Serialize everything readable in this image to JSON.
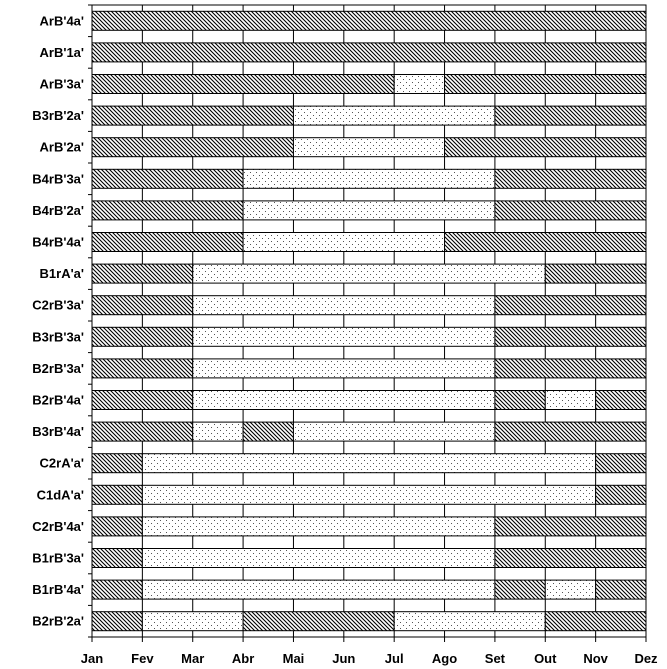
{
  "chart_data": {
    "type": "bar",
    "subtype": "gantt-timeline",
    "title": "",
    "xlabel": "",
    "ylabel": "",
    "months": [
      "Jan",
      "Fev",
      "Mar",
      "Abr",
      "Mai",
      "Jun",
      "Jul",
      "Ago",
      "Set",
      "Out",
      "Nov",
      "Dez"
    ],
    "xlim": [
      0,
      11
    ],
    "grid": "vertical-at-months",
    "legend": "none",
    "patterns": {
      "h": "dense-diagonal-hatch",
      "d": "sparse-dots"
    },
    "rows": [
      {
        "label": "ArB'4a'",
        "segments": [
          {
            "s": 0,
            "e": 11,
            "p": "h"
          }
        ]
      },
      {
        "label": "ArB'1a'",
        "segments": [
          {
            "s": 0,
            "e": 11,
            "p": "h"
          }
        ]
      },
      {
        "label": "ArB'3a'",
        "segments": [
          {
            "s": 0,
            "e": 6,
            "p": "h"
          },
          {
            "s": 6,
            "e": 7,
            "p": "d"
          },
          {
            "s": 7,
            "e": 11,
            "p": "h"
          }
        ]
      },
      {
        "label": "B3rB'2a'",
        "segments": [
          {
            "s": 0,
            "e": 4,
            "p": "h"
          },
          {
            "s": 4,
            "e": 8,
            "p": "d"
          },
          {
            "s": 8,
            "e": 11,
            "p": "h"
          }
        ]
      },
      {
        "label": "ArB'2a'",
        "segments": [
          {
            "s": 0,
            "e": 4,
            "p": "h"
          },
          {
            "s": 4,
            "e": 7,
            "p": "d"
          },
          {
            "s": 7,
            "e": 11,
            "p": "h"
          }
        ]
      },
      {
        "label": "B4rB'3a'",
        "segments": [
          {
            "s": 0,
            "e": 3,
            "p": "h"
          },
          {
            "s": 3,
            "e": 8,
            "p": "d"
          },
          {
            "s": 8,
            "e": 11,
            "p": "h"
          }
        ]
      },
      {
        "label": "B4rB'2a'",
        "segments": [
          {
            "s": 0,
            "e": 3,
            "p": "h"
          },
          {
            "s": 3,
            "e": 8,
            "p": "d"
          },
          {
            "s": 8,
            "e": 11,
            "p": "h"
          }
        ]
      },
      {
        "label": "B4rB'4a'",
        "segments": [
          {
            "s": 0,
            "e": 3,
            "p": "h"
          },
          {
            "s": 3,
            "e": 7,
            "p": "d"
          },
          {
            "s": 7,
            "e": 11,
            "p": "h"
          }
        ]
      },
      {
        "label": "B1rA'a'",
        "segments": [
          {
            "s": 0,
            "e": 2,
            "p": "h"
          },
          {
            "s": 2,
            "e": 9,
            "p": "d"
          },
          {
            "s": 9,
            "e": 11,
            "p": "h"
          }
        ]
      },
      {
        "label": "C2rB'3a'",
        "segments": [
          {
            "s": 0,
            "e": 2,
            "p": "h"
          },
          {
            "s": 2,
            "e": 8,
            "p": "d"
          },
          {
            "s": 8,
            "e": 11,
            "p": "h"
          }
        ]
      },
      {
        "label": "B3rB'3a'",
        "segments": [
          {
            "s": 0,
            "e": 2,
            "p": "h"
          },
          {
            "s": 2,
            "e": 8,
            "p": "d"
          },
          {
            "s": 8,
            "e": 11,
            "p": "h"
          }
        ]
      },
      {
        "label": "B2rB'3a'",
        "segments": [
          {
            "s": 0,
            "e": 2,
            "p": "h"
          },
          {
            "s": 2,
            "e": 8,
            "p": "d"
          },
          {
            "s": 8,
            "e": 11,
            "p": "h"
          }
        ]
      },
      {
        "label": "B2rB'4a'",
        "segments": [
          {
            "s": 0,
            "e": 2,
            "p": "h"
          },
          {
            "s": 2,
            "e": 8,
            "p": "d"
          },
          {
            "s": 8,
            "e": 9,
            "p": "h"
          },
          {
            "s": 9,
            "e": 10,
            "p": "d"
          },
          {
            "s": 10,
            "e": 11,
            "p": "h"
          }
        ]
      },
      {
        "label": "B3rB'4a'",
        "segments": [
          {
            "s": 0,
            "e": 2,
            "p": "h"
          },
          {
            "s": 2,
            "e": 3,
            "p": "d"
          },
          {
            "s": 3,
            "e": 4,
            "p": "h"
          },
          {
            "s": 4,
            "e": 8,
            "p": "d"
          },
          {
            "s": 8,
            "e": 11,
            "p": "h"
          }
        ]
      },
      {
        "label": "C2rA'a'",
        "segments": [
          {
            "s": 0,
            "e": 1,
            "p": "h"
          },
          {
            "s": 1,
            "e": 10,
            "p": "d"
          },
          {
            "s": 10,
            "e": 11,
            "p": "h"
          }
        ]
      },
      {
        "label": "C1dA'a'",
        "segments": [
          {
            "s": 0,
            "e": 1,
            "p": "h"
          },
          {
            "s": 1,
            "e": 10,
            "p": "d"
          },
          {
            "s": 10,
            "e": 11,
            "p": "h"
          }
        ]
      },
      {
        "label": "C2rB'4a'",
        "segments": [
          {
            "s": 0,
            "e": 1,
            "p": "h"
          },
          {
            "s": 1,
            "e": 8,
            "p": "d"
          },
          {
            "s": 8,
            "e": 11,
            "p": "h"
          }
        ]
      },
      {
        "label": "B1rB'3a'",
        "segments": [
          {
            "s": 0,
            "e": 1,
            "p": "h"
          },
          {
            "s": 1,
            "e": 8,
            "p": "d"
          },
          {
            "s": 8,
            "e": 11,
            "p": "h"
          }
        ]
      },
      {
        "label": "B1rB'4a'",
        "segments": [
          {
            "s": 0,
            "e": 1,
            "p": "h"
          },
          {
            "s": 1,
            "e": 8,
            "p": "d"
          },
          {
            "s": 8,
            "e": 9,
            "p": "h"
          },
          {
            "s": 9,
            "e": 10,
            "p": "d"
          },
          {
            "s": 10,
            "e": 11,
            "p": "h"
          }
        ]
      },
      {
        "label": "B2rB'2a'",
        "segments": [
          {
            "s": 0,
            "e": 1,
            "p": "h"
          },
          {
            "s": 1,
            "e": 3,
            "p": "d"
          },
          {
            "s": 3,
            "e": 6,
            "p": "h"
          },
          {
            "s": 6,
            "e": 9,
            "p": "d"
          },
          {
            "s": 9,
            "e": 11,
            "p": "h"
          }
        ]
      }
    ]
  }
}
